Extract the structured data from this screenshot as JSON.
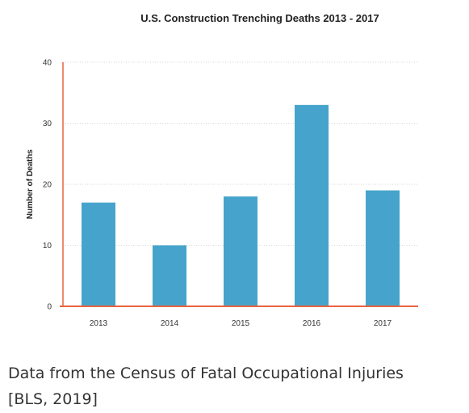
{
  "chart_data": {
    "type": "bar",
    "title": "U.S. Construction Trenching Deaths 2013 - 2017",
    "xlabel": "",
    "ylabel": "Number of Deaths",
    "categories": [
      "2013",
      "2014",
      "2015",
      "2016",
      "2017"
    ],
    "values": [
      17,
      10,
      18,
      33,
      19
    ],
    "ylim": [
      0,
      40
    ],
    "yticks": [
      "0",
      "10",
      "20",
      "30",
      "40"
    ],
    "grid": true,
    "legend": "none",
    "bar_color": "#46a4cc",
    "axis_color": "#e8633e"
  },
  "caption": {
    "line1": "Data from the Census of Fatal Occupational Injuries",
    "line2": "[BLS, 2019]"
  }
}
